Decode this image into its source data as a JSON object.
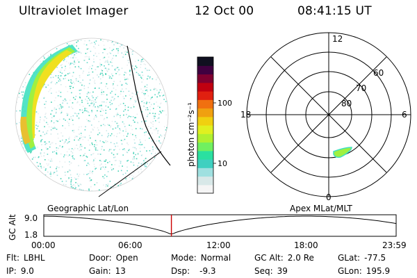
{
  "header": {
    "title": "Ultraviolet Imager",
    "date": "12 Oct 00",
    "time": "08:41:15 UT"
  },
  "colorbar": {
    "unit_label": "photon cm⁻²s⁻¹",
    "ticks": [
      {
        "label": "100",
        "value": 100
      },
      {
        "label": "10",
        "value": 10
      }
    ],
    "colors": [
      "#f5f5f5",
      "#d8e8e8",
      "#9fe0e0",
      "#3fd0c0",
      "#2ae0a0",
      "#70f060",
      "#b0f030",
      "#e0f020",
      "#f0d010",
      "#f0a010",
      "#f07010",
      "#e02010",
      "#c00010",
      "#800030",
      "#400040",
      "#101020"
    ]
  },
  "image_panel": {
    "label": "Geographic Lat/Lon"
  },
  "polar_panel": {
    "label": "Apex MLat/MLT",
    "mlt_labels": [
      {
        "label": "12",
        "pos": "top"
      },
      {
        "label": "18",
        "pos": "left"
      },
      {
        "label": "6",
        "pos": "right"
      },
      {
        "label": "0",
        "pos": "bottom"
      }
    ],
    "lat_labels": [
      "60",
      "70",
      "80"
    ]
  },
  "timeline": {
    "y_label": "GC Alt",
    "y_ticks": [
      "9.0",
      "1.8"
    ],
    "x_ticks": [
      "00:00",
      "06:00",
      "12:00",
      "18:00",
      "23:59"
    ],
    "current_time_hours": 8.69
  },
  "footer": {
    "flt_label": "Flt:",
    "flt_value": "LBHL",
    "ip_label": "IP:",
    "ip_value": "9.0",
    "door_label": "Door:",
    "door_value": "Open",
    "gain_label": "Gain:",
    "gain_value": "13",
    "mode_label": "Mode:",
    "mode_value": "Normal",
    "dsp_label": "Dsp:",
    "dsp_value": "-9.3",
    "gcalt_label": "GC Alt:",
    "gcalt_value": "2.0 Re",
    "seq_label": "Seq:",
    "seq_value": "39",
    "glat_label": "GLat:",
    "glat_value": "-77.5",
    "glon_label": "GLon:",
    "glon_value": "195.9"
  },
  "colors": {
    "current_time_marker": "#cc0000",
    "oval_bright": "#f0e020",
    "oval_mid": "#b0f040",
    "oval_low": "#40e0c0"
  }
}
